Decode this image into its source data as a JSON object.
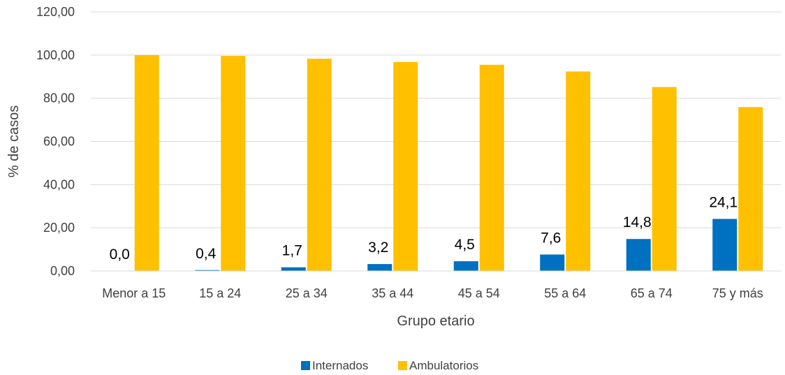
{
  "chart_data": {
    "type": "bar",
    "title": "",
    "xlabel": "Grupo etario",
    "ylabel": "% de casos",
    "categories": [
      "Menor a 15",
      "15 a 24",
      "25 a 34",
      "35 a 44",
      "45 a 54",
      "55 a 64",
      "65 a 74",
      "75 y más"
    ],
    "ylim": [
      0,
      120
    ],
    "yticks": [
      "0,00",
      "20,00",
      "40,00",
      "60,00",
      "80,00",
      "100,00",
      "120,00"
    ],
    "grid": true,
    "legend_position": "bottom",
    "series": [
      {
        "name": "Internados",
        "color": "#0070C0",
        "values": [
          0.0,
          0.4,
          1.7,
          3.2,
          4.5,
          7.6,
          14.8,
          24.1
        ],
        "data_labels": [
          "0,0",
          "0,4",
          "1,7",
          "3,2",
          "4,5",
          "7,6",
          "14,8",
          "24,1"
        ]
      },
      {
        "name": "Ambulatorios",
        "color": "#FFC000",
        "values": [
          100.0,
          99.6,
          98.3,
          96.8,
          95.5,
          92.4,
          85.2,
          75.9
        ]
      }
    ]
  }
}
